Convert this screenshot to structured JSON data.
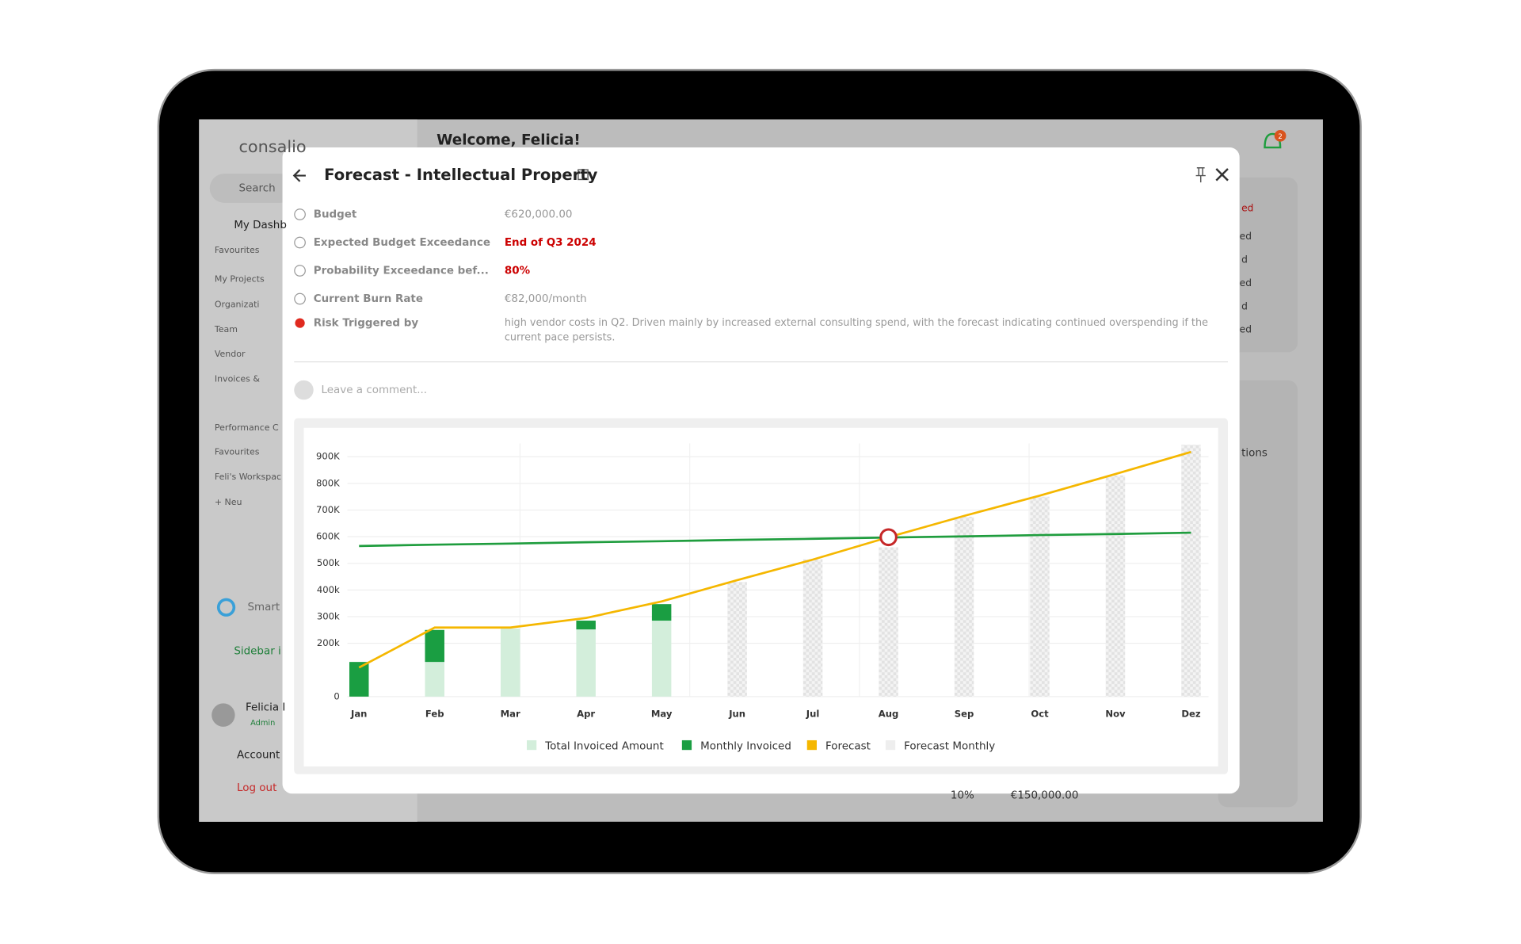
{
  "app": {
    "logo": "consalio",
    "search": "Search",
    "nav": [
      "My Dashb",
      "Favourites",
      "My Projects",
      "Organizati",
      "Team",
      "Vendor",
      "Invoices &",
      "Performance C",
      "Favourites",
      "Feli's Workspac",
      "+ Neu"
    ],
    "smart": "Smart",
    "sidebar_toggle": "Sidebar i",
    "user": {
      "name": "Felicia I",
      "role": "Admin"
    },
    "account": "Account",
    "logout": "Log out",
    "welcome": "Welcome, Felicia!",
    "notifications": "2",
    "bg_fragments": [
      "ed",
      "ed",
      "d",
      "ed",
      "d",
      "ed",
      "tions",
      "10%",
      "€150,000.00"
    ]
  },
  "modal": {
    "title": "Forecast - Intellectual Property",
    "fields": [
      {
        "label": "Budget",
        "value": "€620,000.00"
      },
      {
        "label": "Expected Budget Exceedance",
        "value": "End of Q3 2024"
      },
      {
        "label": "Probability Exceedance bef...",
        "value": "80%"
      },
      {
        "label": "Current Burn Rate",
        "value": "€82,000/month"
      },
      {
        "label": "Risk Triggered by",
        "value": [
          "high vendor costs in Q2. Driven mainly by increased external consulting spend, with the forecast indicating continued overspending if the",
          "current pace persists."
        ]
      }
    ],
    "comment_placeholder": "Leave a comment..."
  },
  "chart_data": {
    "type": "combo",
    "categories": [
      "Jan",
      "Feb",
      "Mar",
      "Apr",
      "May",
      "Jun",
      "Jul",
      "Aug",
      "Sep",
      "Oct",
      "Nov",
      "Dez"
    ],
    "series": [
      {
        "name": "Total Invoiced Amount",
        "color": "#d3eedb",
        "kind": "bar",
        "values": [
          0,
          130,
          255,
          252,
          285,
          null,
          null,
          null,
          null,
          null,
          null,
          null
        ]
      },
      {
        "name": "Monthly Invoiced",
        "color": "#1a9e42",
        "kind": "bar",
        "values": [
          130,
          120,
          0,
          33,
          62,
          null,
          null,
          null,
          null,
          null,
          null,
          null
        ]
      },
      {
        "name": "Forecast",
        "color": "#f5b700",
        "kind": "line",
        "values": [
          109,
          259,
          259,
          295,
          357,
          437,
          514,
          598,
          678,
          754,
          835,
          918
        ]
      },
      {
        "name": "Forecast Monthly",
        "color": "#eeeeee",
        "kind": "hatched",
        "values": [
          null,
          null,
          null,
          null,
          null,
          430,
          515,
          560,
          675,
          750,
          830,
          945
        ]
      }
    ],
    "budget_line": {
      "color": "#1f9d3e",
      "values": [
        565,
        570,
        574,
        579,
        583,
        588,
        592,
        597,
        601,
        606,
        610,
        615
      ]
    },
    "ylim": [
      0,
      950
    ],
    "yticks": [
      {
        "value": 0,
        "label": "0"
      },
      {
        "value": 200,
        "label": "200k"
      },
      {
        "value": 300,
        "label": "300k"
      },
      {
        "value": 400,
        "label": "400k"
      },
      {
        "value": 500,
        "label": "500k"
      },
      {
        "value": 600,
        "label": "600K"
      },
      {
        "value": 700,
        "label": "700K"
      },
      {
        "value": 800,
        "label": "800K"
      },
      {
        "value": 900,
        "label": "900K"
      }
    ],
    "grid": true
  }
}
